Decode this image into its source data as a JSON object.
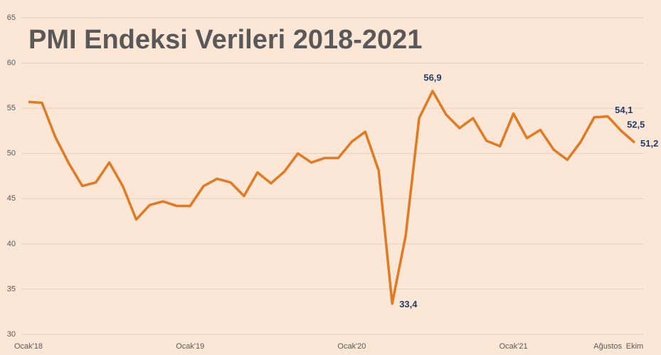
{
  "chart_data": {
    "type": "line",
    "title": "PMI Endeksi Verileri 2018-2021",
    "categories": [
      "Ocak'18",
      null,
      null,
      null,
      null,
      null,
      null,
      null,
      null,
      null,
      null,
      null,
      "Ocak'19",
      null,
      null,
      null,
      null,
      null,
      null,
      null,
      null,
      null,
      null,
      null,
      "Ocak'20",
      null,
      null,
      null,
      null,
      null,
      null,
      null,
      null,
      null,
      null,
      null,
      "Ocak'21",
      null,
      null,
      null,
      null,
      null,
      null,
      "Ağustos",
      null,
      "Ekim"
    ],
    "series": [
      {
        "name": "PMI",
        "color": "#e07b24",
        "values": [
          55.7,
          55.6,
          51.8,
          48.9,
          46.4,
          46.8,
          49.0,
          46.4,
          42.7,
          44.3,
          44.7,
          44.2,
          44.2,
          46.4,
          47.2,
          46.8,
          45.3,
          47.9,
          46.7,
          48.0,
          50.0,
          49.0,
          49.5,
          49.5,
          51.3,
          52.4,
          48.1,
          33.4,
          40.9,
          53.9,
          56.9,
          54.3,
          52.8,
          53.9,
          51.4,
          50.8,
          54.4,
          51.7,
          52.6,
          50.4,
          49.3,
          51.3,
          54.0,
          54.1,
          52.5,
          51.2
        ],
        "value_labels": [
          null,
          null,
          null,
          null,
          null,
          null,
          null,
          null,
          null,
          null,
          null,
          null,
          null,
          null,
          null,
          null,
          null,
          null,
          null,
          null,
          null,
          null,
          null,
          null,
          null,
          null,
          null,
          "33,4",
          null,
          null,
          "56,9",
          null,
          null,
          null,
          null,
          null,
          null,
          null,
          null,
          null,
          null,
          null,
          null,
          "54,1",
          "52,5",
          "51,2"
        ]
      }
    ],
    "ylim": [
      30,
      65
    ],
    "yticks": [
      30,
      35,
      40,
      45,
      50,
      55,
      60,
      65
    ],
    "grid": true
  }
}
